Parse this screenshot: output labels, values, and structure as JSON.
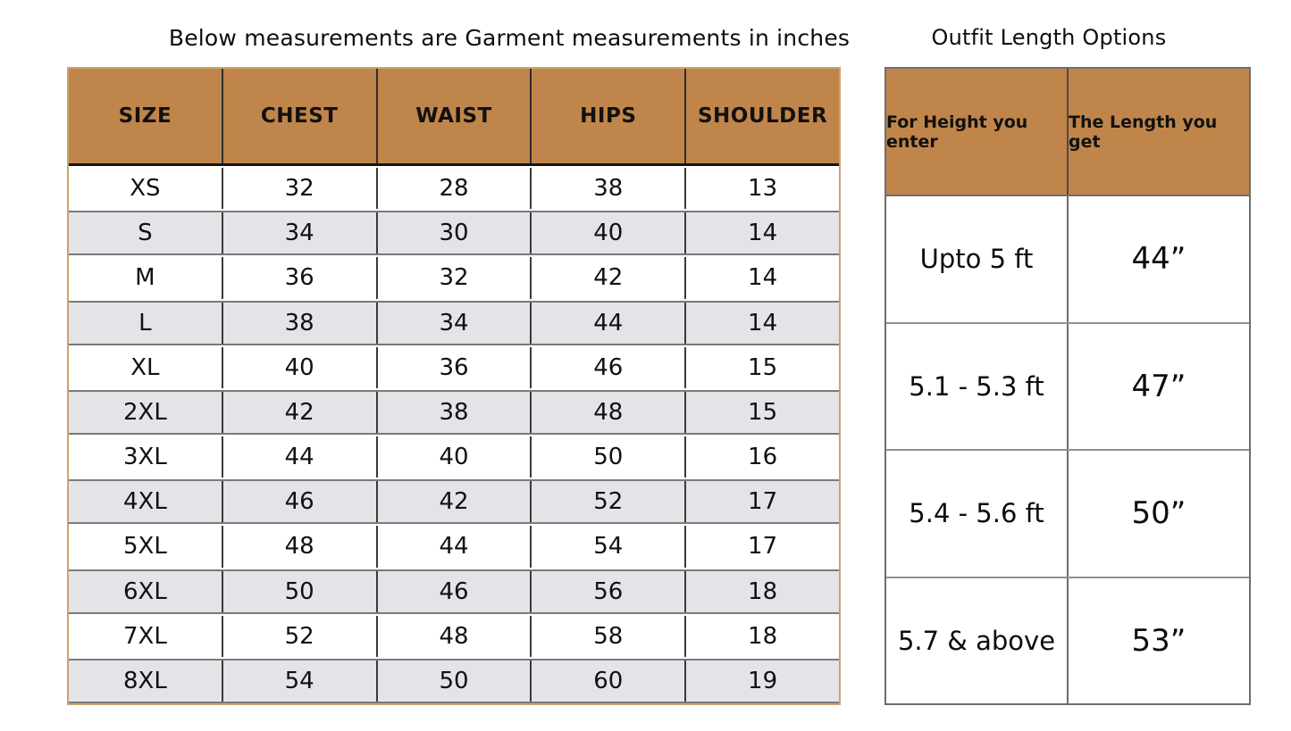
{
  "left_table": {
    "title": "Below measurements are Garment measurements in inches",
    "columns": [
      "SIZE",
      "CHEST",
      "WAIST",
      "HIPS",
      "SHOULDER"
    ],
    "rows": [
      {
        "size": "XS",
        "chest": "32",
        "waist": "28",
        "hips": "38",
        "shoulder": "13"
      },
      {
        "size": "S",
        "chest": "34",
        "waist": "30",
        "hips": "40",
        "shoulder": "14"
      },
      {
        "size": "M",
        "chest": "36",
        "waist": "32",
        "hips": "42",
        "shoulder": "14"
      },
      {
        "size": "L",
        "chest": "38",
        "waist": "34",
        "hips": "44",
        "shoulder": "14"
      },
      {
        "size": "XL",
        "chest": "40",
        "waist": "36",
        "hips": "46",
        "shoulder": "15"
      },
      {
        "size": "2XL",
        "chest": "42",
        "waist": "38",
        "hips": "48",
        "shoulder": "15"
      },
      {
        "size": "3XL",
        "chest": "44",
        "waist": "40",
        "hips": "50",
        "shoulder": "16"
      },
      {
        "size": "4XL",
        "chest": "46",
        "waist": "42",
        "hips": "52",
        "shoulder": "17"
      },
      {
        "size": "5XL",
        "chest": "48",
        "waist": "44",
        "hips": "54",
        "shoulder": "17"
      },
      {
        "size": "6XL",
        "chest": "50",
        "waist": "46",
        "hips": "56",
        "shoulder": "18"
      },
      {
        "size": "7XL",
        "chest": "52",
        "waist": "48",
        "hips": "58",
        "shoulder": "18"
      },
      {
        "size": "8XL",
        "chest": "54",
        "waist": "50",
        "hips": "60",
        "shoulder": "19"
      }
    ]
  },
  "right_table": {
    "title": "Outfit Length Options",
    "columns": [
      "For Height you enter",
      "The Length you get"
    ],
    "rows": [
      {
        "height": "Upto 5 ft",
        "length": "44”"
      },
      {
        "height": "5.1 - 5.3 ft",
        "length": "47”"
      },
      {
        "height": "5.4 - 5.6 ft",
        "length": "50”"
      },
      {
        "height": "5.7 & above",
        "length": "53”"
      }
    ]
  },
  "colors": {
    "header_bg": "#c0854a",
    "alt_row_bg": "#e3e3e8",
    "left_table_outer_border": "#cba36c",
    "left_table_inner_line": "#3a3a3a",
    "alt_row_line": "#7a7a7a",
    "header_underline": "#151515",
    "right_table_border": "#6e6e6e",
    "right_row_line": "#909090",
    "text": "#111111",
    "background": "#ffffff"
  }
}
